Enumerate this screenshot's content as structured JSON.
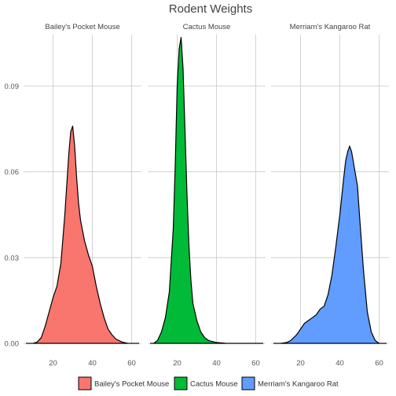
{
  "chart_data": {
    "type": "area",
    "title": "Rodent Weights",
    "xlabel": "",
    "ylabel": "",
    "xlim": [
      5,
      65
    ],
    "ylim": [
      0,
      0.108
    ],
    "xticks": [
      20,
      40,
      60
    ],
    "yticks": [
      0.0,
      0.03,
      0.06,
      0.09
    ],
    "ytick_labels": [
      "0.00",
      "0.03",
      "0.06",
      "0.09"
    ],
    "grid": true,
    "legend_position": "bottom",
    "series": [
      {
        "name": "Bailey's Pocket Mouse",
        "facet": "Bailey's Pocket Mouse",
        "color": "#F8766D",
        "points": [
          [
            10,
            0
          ],
          [
            12,
            0.0005
          ],
          [
            14,
            0.002
          ],
          [
            16,
            0.006
          ],
          [
            18,
            0.011
          ],
          [
            20,
            0.016
          ],
          [
            22,
            0.02
          ],
          [
            24,
            0.028
          ],
          [
            26,
            0.045
          ],
          [
            28,
            0.066
          ],
          [
            29,
            0.074
          ],
          [
            30,
            0.076
          ],
          [
            31,
            0.069
          ],
          [
            32,
            0.058
          ],
          [
            33,
            0.049
          ],
          [
            34,
            0.043
          ],
          [
            36,
            0.036
          ],
          [
            38,
            0.031
          ],
          [
            40,
            0.027
          ],
          [
            42,
            0.02
          ],
          [
            44,
            0.014
          ],
          [
            46,
            0.009
          ],
          [
            48,
            0.005
          ],
          [
            50,
            0.003
          ],
          [
            52,
            0.0015
          ],
          [
            55,
            0.0005
          ],
          [
            58,
            0
          ]
        ]
      },
      {
        "name": "Cactus Mouse",
        "facet": "Cactus Mouse",
        "color": "#00BA38",
        "points": [
          [
            8,
            0
          ],
          [
            10,
            0.001
          ],
          [
            12,
            0.004
          ],
          [
            14,
            0.009
          ],
          [
            16,
            0.018
          ],
          [
            18,
            0.04
          ],
          [
            19,
            0.062
          ],
          [
            20,
            0.09
          ],
          [
            21,
            0.103
          ],
          [
            22,
            0.107
          ],
          [
            23,
            0.096
          ],
          [
            24,
            0.074
          ],
          [
            25,
            0.052
          ],
          [
            26,
            0.034
          ],
          [
            27,
            0.022
          ],
          [
            28,
            0.014
          ],
          [
            30,
            0.008
          ],
          [
            32,
            0.004
          ],
          [
            34,
            0.002
          ],
          [
            36,
            0.001
          ],
          [
            40,
            0.0003
          ],
          [
            45,
            0
          ]
        ]
      },
      {
        "name": "Merriam's Kangaroo Rat",
        "facet": "Merriam's Kangaroo Rat",
        "color": "#619CFF",
        "points": [
          [
            10,
            0
          ],
          [
            13,
            0.0003
          ],
          [
            15,
            0.001
          ],
          [
            18,
            0.003
          ],
          [
            20,
            0.005
          ],
          [
            22,
            0.007
          ],
          [
            24,
            0.008
          ],
          [
            26,
            0.009
          ],
          [
            28,
            0.01
          ],
          [
            30,
            0.012
          ],
          [
            32,
            0.013
          ],
          [
            34,
            0.017
          ],
          [
            36,
            0.024
          ],
          [
            38,
            0.034
          ],
          [
            40,
            0.045
          ],
          [
            42,
            0.058
          ],
          [
            43,
            0.064
          ],
          [
            44,
            0.067
          ],
          [
            45,
            0.069
          ],
          [
            46,
            0.067
          ],
          [
            47,
            0.063
          ],
          [
            48,
            0.059
          ],
          [
            49,
            0.055
          ],
          [
            50,
            0.045
          ],
          [
            52,
            0.026
          ],
          [
            54,
            0.011
          ],
          [
            56,
            0.004
          ],
          [
            58,
            0.001
          ],
          [
            60,
            0
          ]
        ]
      }
    ]
  }
}
